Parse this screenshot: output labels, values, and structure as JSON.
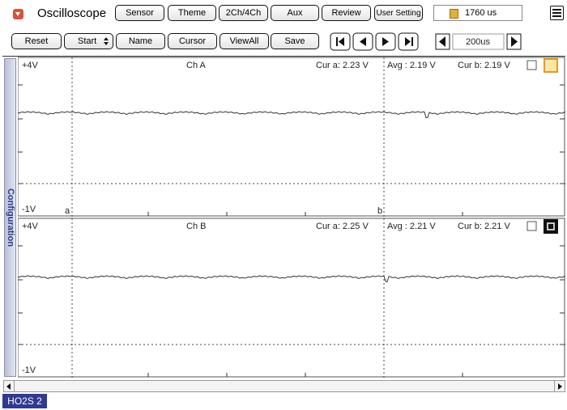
{
  "header": {
    "title": "Oscilloscope",
    "buttons": [
      "Sensor",
      "Theme",
      "2Ch/4Ch",
      "Aux",
      "Review",
      "User Setting"
    ],
    "time": "1760 us"
  },
  "toolbar": {
    "buttons": [
      "Reset",
      "Start",
      "Name",
      "Cursor",
      "ViewAll",
      "Save"
    ],
    "timebase": "200us"
  },
  "side_tab": "Configuration",
  "channels": [
    {
      "name": "Ch A",
      "top": "+4V",
      "bottom": "-1V",
      "cur_a": "Cur a: 2.23 V",
      "avg": "Avg  : 2.19 V",
      "cur_b": "Cur b: 2.19 V",
      "cursor_a": "a",
      "cursor_b": "b"
    },
    {
      "name": "Ch B",
      "top": "+4V",
      "bottom": "-1V",
      "cur_a": "Cur a: 2.25 V",
      "avg": "Avg  : 2.21 V",
      "cur_b": "Cur b: 2.21 V"
    }
  ],
  "status": "HO2S 2"
}
